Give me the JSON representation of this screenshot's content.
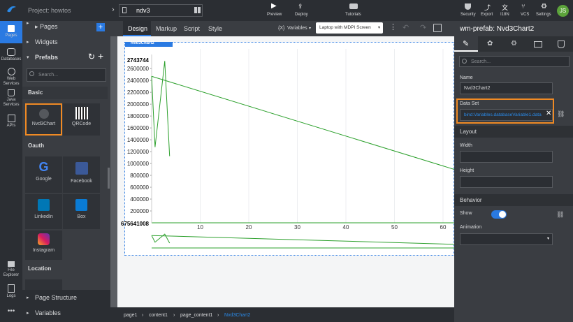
{
  "project": "Project: howtos",
  "sidebar_icons": [
    "Pages",
    "Databases",
    "Web Services",
    "Java Services",
    "APIs",
    "File Explorer",
    "Logs"
  ],
  "left_panel": {
    "sections": [
      "Pages",
      "Widgets",
      "Prefabs"
    ],
    "search_placeholder": "Search...",
    "groups": [
      {
        "title": "Basic",
        "items": [
          "Nvd3Chart",
          "QRCode"
        ]
      },
      {
        "title": "Oauth",
        "items": [
          "Google",
          "Facebook",
          "LinkedIn",
          "Box",
          "Instagram"
        ]
      },
      {
        "title": "Location"
      }
    ],
    "bottom": [
      "Page Structure",
      "Variables"
    ]
  },
  "top_bar": {
    "tab": "ndv3",
    "actions": [
      "Preview",
      "Deploy",
      "Tutorials"
    ],
    "right_actions": [
      "Security",
      "Export",
      "I18N",
      "VCS",
      "Settings"
    ],
    "avatar": "JS"
  },
  "editor_tabs": [
    "Design",
    "Markup",
    "Script",
    "Style"
  ],
  "variables_icon": "{X}",
  "variables_button": "Variables",
  "screen_select": "Laptop with MDPI Screen",
  "widget_label": "Nvd3Chart2",
  "chart": {
    "type": "line",
    "y_top_label": "2743744",
    "y_bottom_label": "675641008",
    "xlim": [
      0,
      62.3
    ],
    "ylim": [
      0,
      2743744
    ],
    "xticks": [
      10,
      20,
      30,
      40,
      50,
      60
    ],
    "yticks": [
      200000,
      400000,
      600000,
      800000,
      1000000,
      1200000,
      1400000,
      1600000,
      1800000,
      2000000,
      2200000,
      2400000,
      2600000
    ],
    "color": "#2ca02c",
    "series": [
      {
        "x": [
          0,
          0.7,
          2.7,
          3.7
        ],
        "y": [
          2470000,
          1276000,
          2728000,
          1124000
        ]
      },
      {
        "x": [
          0,
          62.3
        ],
        "y": [
          2470000,
          901000
        ]
      }
    ]
  },
  "breadcrumb": [
    "page1",
    "content1",
    "page_content1",
    "Nvd3Chart2"
  ],
  "properties": {
    "header": "wm-prefab: Nvd3Chart2",
    "search_placeholder": "Search...",
    "name_label": "Name",
    "name_value": "Nvd3Chart2",
    "dataset_label": "Data Set",
    "dataset_value": "bind:Variables.databaseVariable1.data",
    "layout": "Layout",
    "width_label": "Width",
    "height_label": "Height",
    "behavior": "Behavior",
    "show_label": "Show",
    "animation_label": "Animation"
  }
}
